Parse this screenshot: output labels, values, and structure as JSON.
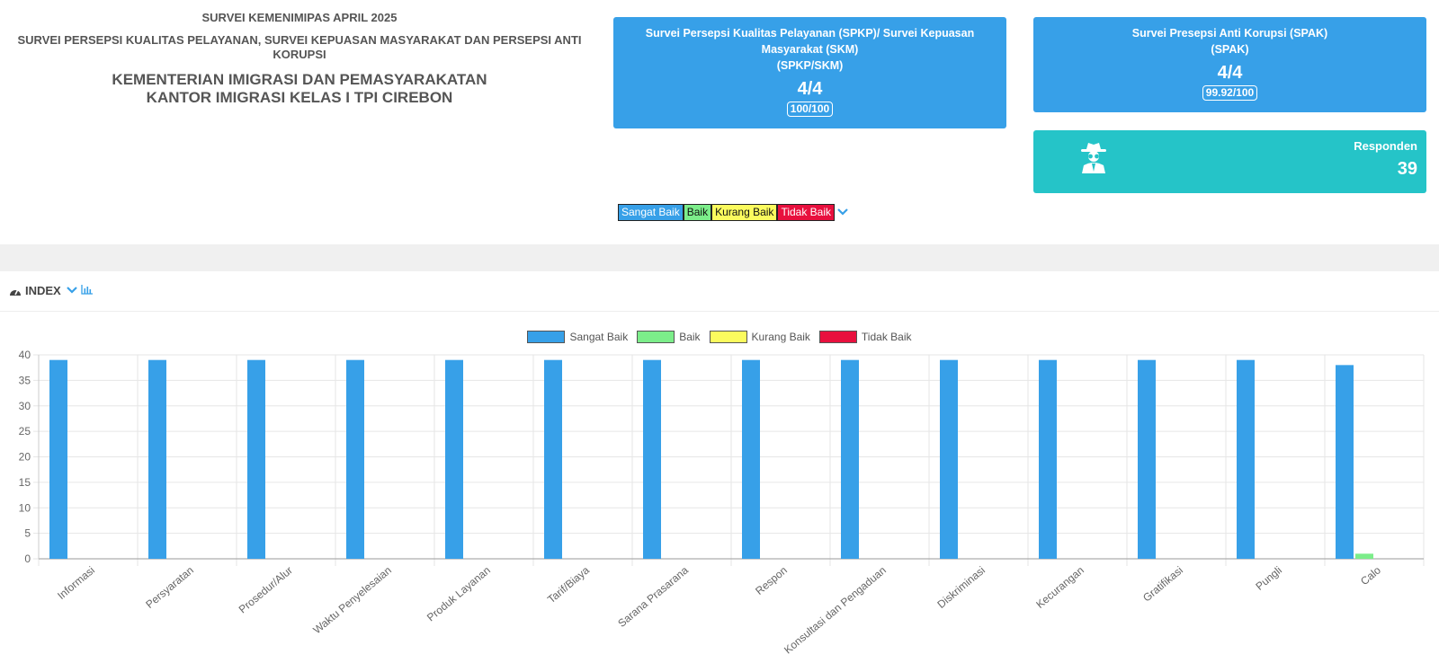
{
  "header": {
    "line1": "SURVEI KEMENIMIPAS APRIL 2025",
    "line2": "SURVEI PERSEPSI KUALITAS PELAYANAN, SURVEI KEPUASAN MASYARAKAT DAN PERSEPSI ANTI KORUPSI",
    "line3a": "KEMENTERIAN IMIGRASI DAN PEMASYARAKATAN",
    "line3b": "KANTOR IMIGRASI KELAS I TPI CIREBON"
  },
  "card_spkp": {
    "title": "Survei Persepsi Kualitas Pelayanan (SPKP)/ Survei Kepuasan Masyarakat (SKM)",
    "subtitle": "(SPKP/SKM)",
    "score": "4/4",
    "pill": "100/100",
    "color": "#37a0e8"
  },
  "card_spak": {
    "title": "Survei Presepsi Anti Korupsi (SPAK)",
    "subtitle": "(SPAK)",
    "score": "4/4",
    "pill": "99.92/100",
    "color": "#37a0e8"
  },
  "responden": {
    "label": "Responden",
    "value": "39",
    "icon": "spy-icon",
    "color": "#25c4c8"
  },
  "top_legend": [
    "Sangat Baik",
    "Baik",
    "Kurang Baik",
    "Tidak Baik"
  ],
  "panel": {
    "title": "INDEX"
  },
  "colors": {
    "sangat_baik": "#37a0e8",
    "baik": "#7ced8a",
    "kurang_baik": "#fbfb5e",
    "tidak_baik": "#e8103e"
  },
  "chart_data": {
    "type": "bar",
    "categories": [
      "Informasi",
      "Persyaratan",
      "Prosedur/Alur",
      "Waktu Penyelesaian",
      "Produk Layanan",
      "Tarif/Biaya",
      "Sarana Prasarana",
      "Respon",
      "Konsultasi dan Pengaduan",
      "Diskriminasi",
      "Kecurangan",
      "Gratifikasi",
      "Pungli",
      "Calo"
    ],
    "series": [
      {
        "name": "Sangat Baik",
        "values": [
          39,
          39,
          39,
          39,
          39,
          39,
          39,
          39,
          39,
          39,
          39,
          39,
          39,
          38
        ]
      },
      {
        "name": "Baik",
        "values": [
          0,
          0,
          0,
          0,
          0,
          0,
          0,
          0,
          0,
          0,
          0,
          0,
          0,
          1
        ]
      },
      {
        "name": "Kurang Baik",
        "values": [
          0,
          0,
          0,
          0,
          0,
          0,
          0,
          0,
          0,
          0,
          0,
          0,
          0,
          0
        ]
      },
      {
        "name": "Tidak Baik",
        "values": [
          0,
          0,
          0,
          0,
          0,
          0,
          0,
          0,
          0,
          0,
          0,
          0,
          0,
          0
        ]
      }
    ],
    "ylim": [
      0,
      40
    ],
    "yticks": [
      0,
      5,
      10,
      15,
      20,
      25,
      30,
      35,
      40
    ],
    "grid": true,
    "legend": "top"
  }
}
